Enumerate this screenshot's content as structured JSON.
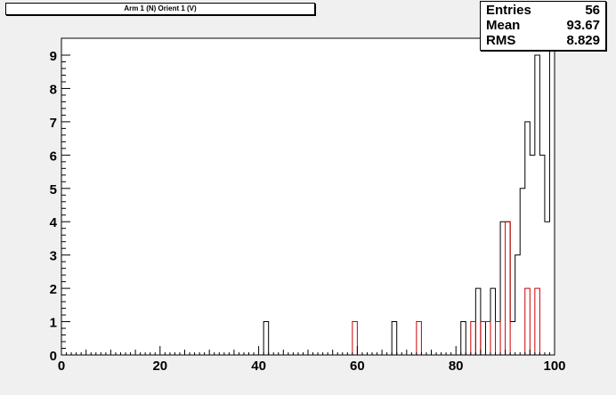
{
  "title": "Arm 1 (N) Orient 1 (V)",
  "stats": [
    {
      "label": "Entries",
      "value": "56"
    },
    {
      "label": "Mean",
      "value": "93.67"
    },
    {
      "label": "RMS",
      "value": "8.829"
    }
  ],
  "colors": {
    "series1": "#000000",
    "series2": "#cc0000",
    "frame": "#000000",
    "background": "#f0f0f0"
  },
  "chart_data": {
    "type": "bar",
    "title": "Arm 1 (N) Orient 1 (V)",
    "xlim": [
      0,
      100
    ],
    "ylim": [
      0,
      9.5
    ],
    "bin_width": 1,
    "x_ticks": [
      0,
      20,
      40,
      60,
      80,
      100
    ],
    "y_ticks": [
      0,
      1,
      2,
      3,
      4,
      5,
      6,
      7,
      8,
      9
    ],
    "grid": false,
    "series": [
      {
        "color": "#000000",
        "bins": [
          {
            "x": 41,
            "y": 1
          },
          {
            "x": 67,
            "y": 1
          },
          {
            "x": 81,
            "y": 1
          },
          {
            "x": 84,
            "y": 2
          },
          {
            "x": 86,
            "y": 1
          },
          {
            "x": 87,
            "y": 2
          },
          {
            "x": 88,
            "y": 1
          },
          {
            "x": 89,
            "y": 4
          },
          {
            "x": 90,
            "y": 4
          },
          {
            "x": 91,
            "y": 1
          },
          {
            "x": 92,
            "y": 3
          },
          {
            "x": 93,
            "y": 5
          },
          {
            "x": 94,
            "y": 7
          },
          {
            "x": 95,
            "y": 6
          },
          {
            "x": 96,
            "y": 9
          },
          {
            "x": 97,
            "y": 6
          },
          {
            "x": 98,
            "y": 4
          },
          {
            "x": 99,
            "y": 10
          }
        ]
      },
      {
        "color": "#cc0000",
        "bins": [
          {
            "x": 59,
            "y": 1
          },
          {
            "x": 72,
            "y": 1
          },
          {
            "x": 83,
            "y": 1
          },
          {
            "x": 85,
            "y": 1
          },
          {
            "x": 86,
            "y": 1
          },
          {
            "x": 88,
            "y": 1
          },
          {
            "x": 90,
            "y": 4
          },
          {
            "x": 94,
            "y": 2
          },
          {
            "x": 96,
            "y": 2
          }
        ]
      }
    ]
  }
}
